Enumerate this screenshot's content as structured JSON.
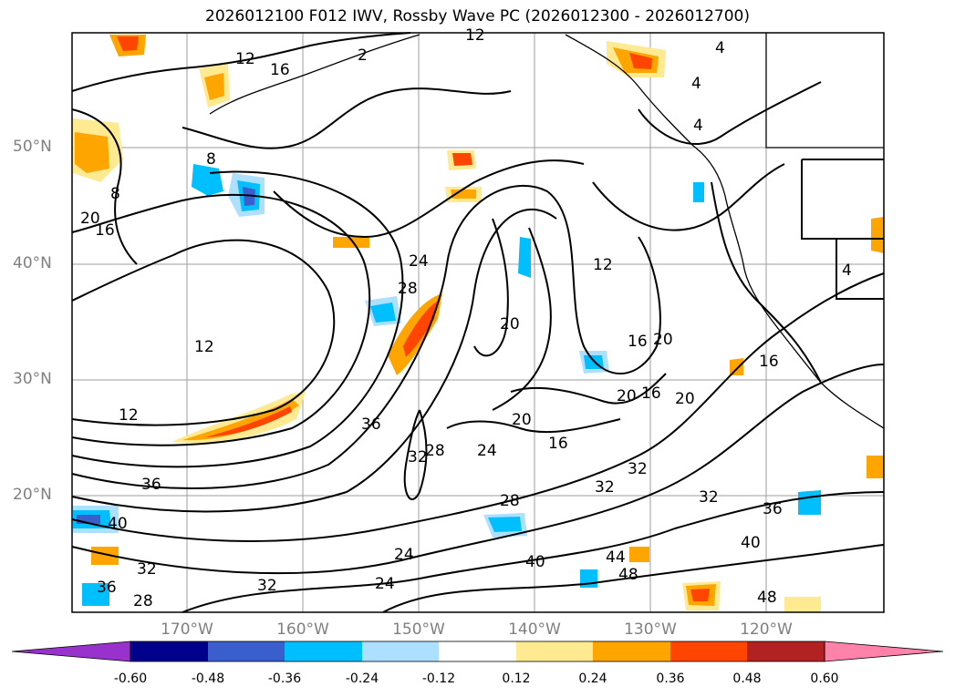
{
  "title": "2026012100 F012 IWV, Rossby Wave PC (2026012300 - 2026012700)",
  "lat_labels": [
    "50°N",
    "40°N",
    "30°N",
    "20°N"
  ],
  "lon_labels": [
    "170°W",
    "160°W",
    "150°W",
    "140°W",
    "130°W",
    "120°W"
  ],
  "colorbar": {
    "ticks": [
      "-0.60",
      "-0.48",
      "-0.36",
      "-0.24",
      "-0.12",
      "0.12",
      "0.24",
      "0.36",
      "0.48",
      "0.60"
    ],
    "colors": [
      "#9932CC",
      "#00008B",
      "#3A5FCD",
      "#00BFFF",
      "#ADDFFF",
      "#FFFFFF",
      "#FFE991",
      "#FFA500",
      "#FF4500",
      "#B22222",
      "#FF82AB"
    ]
  },
  "contour_labels": [
    {
      "text": "12"
    },
    {
      "text": "16"
    },
    {
      "text": "2"
    },
    {
      "text": "12"
    },
    {
      "text": "4"
    },
    {
      "text": "4"
    },
    {
      "text": "8"
    },
    {
      "text": "8"
    },
    {
      "text": "20"
    },
    {
      "text": "16"
    },
    {
      "text": "24"
    },
    {
      "text": "28"
    },
    {
      "text": "12"
    },
    {
      "text": "12"
    },
    {
      "text": "20"
    },
    {
      "text": "20"
    },
    {
      "text": "16"
    },
    {
      "text": "16"
    },
    {
      "text": "20"
    },
    {
      "text": "16"
    },
    {
      "text": "20"
    },
    {
      "text": "12"
    },
    {
      "text": "36"
    },
    {
      "text": "32"
    },
    {
      "text": "28"
    },
    {
      "text": "20"
    },
    {
      "text": "24"
    },
    {
      "text": "16"
    },
    {
      "text": "36"
    },
    {
      "text": "28"
    },
    {
      "text": "32"
    },
    {
      "text": "32"
    },
    {
      "text": "32"
    },
    {
      "text": "36"
    },
    {
      "text": "40"
    },
    {
      "text": "40"
    },
    {
      "text": "44"
    },
    {
      "text": "48"
    },
    {
      "text": "48"
    },
    {
      "text": "40"
    },
    {
      "text": "32"
    },
    {
      "text": "36"
    },
    {
      "text": "32"
    },
    {
      "text": "28"
    },
    {
      "text": "24"
    },
    {
      "text": "24"
    },
    {
      "text": "4"
    },
    {
      "text": "4"
    }
  ]
}
